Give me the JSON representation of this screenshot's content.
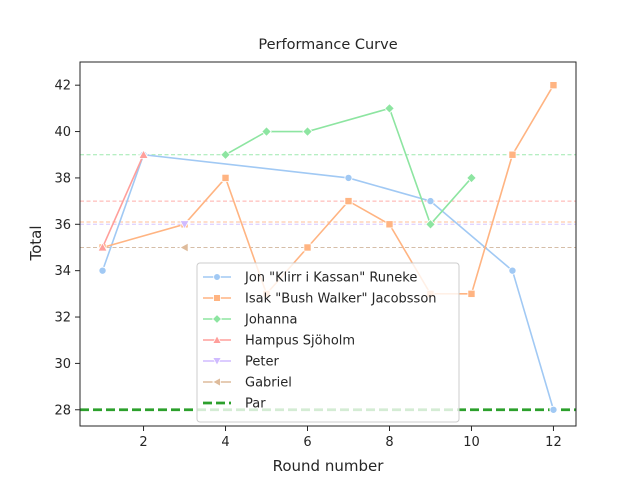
{
  "chart_data": {
    "type": "line",
    "title": "Performance Curve",
    "xlabel": "Round number",
    "ylabel": "Total",
    "xlim": [
      0.45,
      12.55
    ],
    "ylim": [
      27.3,
      43.0
    ],
    "xticks": [
      2,
      4,
      6,
      8,
      10,
      12
    ],
    "yticks": [
      28,
      30,
      32,
      34,
      36,
      38,
      40,
      42
    ],
    "grid": false,
    "legend_position": "lower-center",
    "series": [
      {
        "name": "Jon \"Klirr i Kassan\" Runeke",
        "color": "#a1c9f4",
        "marker": "circle",
        "x": [
          1,
          2,
          7,
          9,
          11,
          12
        ],
        "y": [
          34,
          39,
          38,
          37,
          34,
          28
        ],
        "mean": 35
      },
      {
        "name": "Isak \"Bush Walker\" Jacobsson",
        "color": "#ffb482",
        "marker": "square",
        "x": [
          1,
          3,
          4,
          5,
          6,
          7,
          8,
          9,
          10,
          11,
          12
        ],
        "y": [
          35,
          36,
          38,
          33,
          35,
          37,
          36,
          33,
          33,
          39,
          42
        ],
        "mean": 36.1
      },
      {
        "name": "Johanna",
        "color": "#8de5a1",
        "marker": "diamond",
        "x": [
          4,
          5,
          6,
          8,
          9,
          10
        ],
        "y": [
          39,
          40,
          40,
          41,
          36,
          38
        ],
        "mean": 39
      },
      {
        "name": "Hampus Sjöholm",
        "color": "#ff9f9b",
        "marker": "triangle-up",
        "x": [
          1,
          2
        ],
        "y": [
          35,
          39
        ],
        "mean": 37
      },
      {
        "name": "Peter",
        "color": "#d0bbff",
        "marker": "triangle-down",
        "x": [
          3
        ],
        "y": [
          36
        ],
        "mean": 36
      },
      {
        "name": "Gabriel",
        "color": "#debb9b",
        "marker": "triangle-left",
        "x": [
          3
        ],
        "y": [
          35
        ],
        "mean": 35
      }
    ],
    "par": {
      "name": "Par",
      "value": 28,
      "color": "#2ca02c"
    }
  }
}
